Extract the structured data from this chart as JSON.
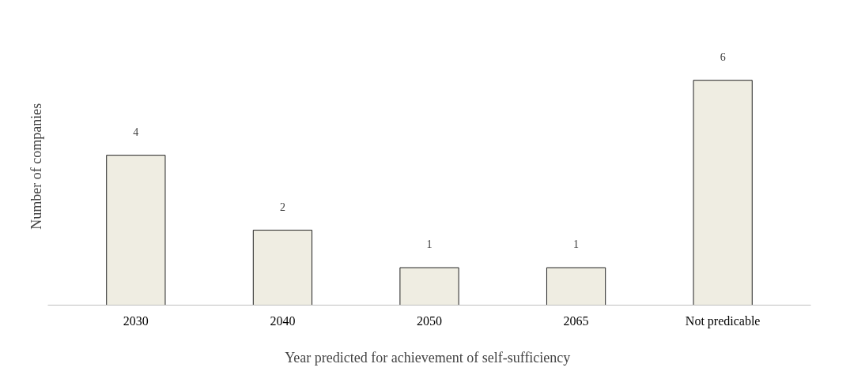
{
  "chart_data": {
    "type": "bar",
    "xlabel": "Year predicted for achievement of  self-sufficiency",
    "ylabel": "Number of  companies",
    "categories": [
      "2030",
      "2040",
      "2050",
      "2065",
      "Not predicable"
    ],
    "values": [
      4,
      2,
      1,
      1,
      6
    ],
    "color": "#efede2",
    "data_labels": true,
    "grid": false
  }
}
